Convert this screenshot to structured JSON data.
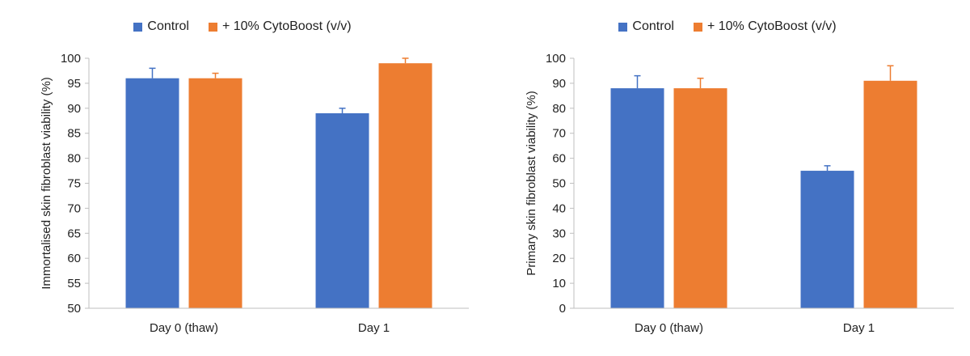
{
  "chart_data": [
    {
      "type": "bar",
      "categories": [
        "Day 0 (thaw)",
        "Day 1"
      ],
      "series": [
        {
          "name": "Control",
          "values": [
            96,
            89
          ],
          "errors": [
            2,
            1
          ],
          "color": "#4472C4"
        },
        {
          "name": "+ 10% CytoBoost (v/v)",
          "values": [
            96,
            99
          ],
          "errors": [
            1,
            1
          ],
          "color": "#ED7D31"
        }
      ],
      "ylabel": "Immortalised skin fibroblast viability (%)",
      "ylim": [
        50,
        100
      ],
      "yticks": [
        50,
        55,
        60,
        65,
        70,
        75,
        80,
        85,
        90,
        95,
        100
      ],
      "legend": "top-center",
      "grid": false
    },
    {
      "type": "bar",
      "categories": [
        "Day 0 (thaw)",
        "Day 1"
      ],
      "series": [
        {
          "name": "Control",
          "values": [
            88,
            55
          ],
          "errors": [
            5,
            2
          ],
          "color": "#4472C4"
        },
        {
          "name": "+ 10% CytoBoost (v/v)",
          "values": [
            88,
            91
          ],
          "errors": [
            4,
            6
          ],
          "color": "#ED7D31"
        }
      ],
      "ylabel": "Primary skin fibroblast viability (%)",
      "ylim": [
        0,
        100
      ],
      "yticks": [
        0,
        10,
        20,
        30,
        40,
        50,
        60,
        70,
        80,
        90,
        100
      ],
      "legend": "top-center",
      "grid": false
    }
  ]
}
